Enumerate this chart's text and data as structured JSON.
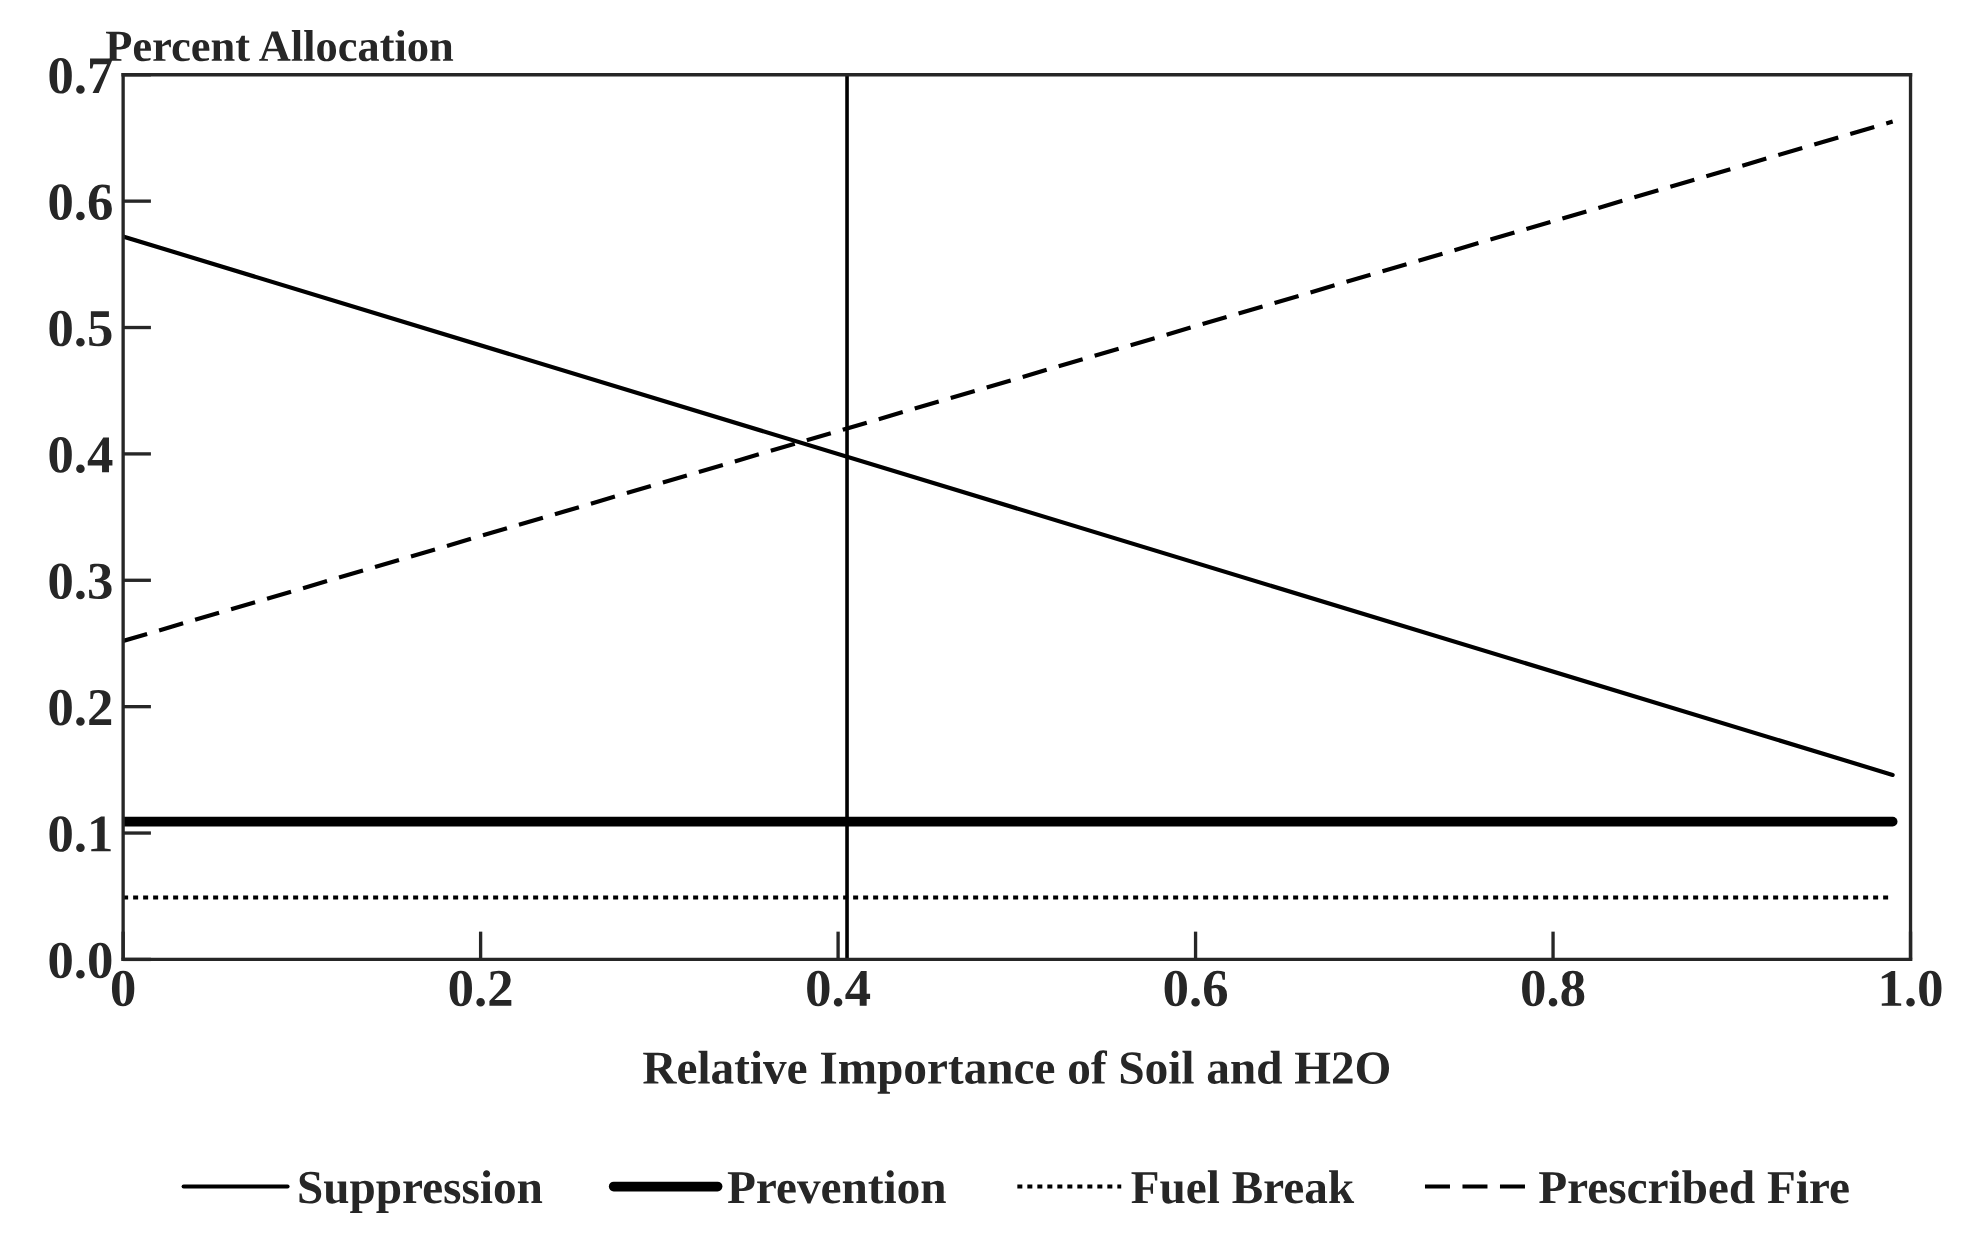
{
  "chart_data": {
    "type": "line",
    "xlabel": "Relative Importance of Soil and H2O",
    "ylabel": "Percent Allocation",
    "x": [
      0,
      0.99
    ],
    "series": [
      {
        "name": "Suppression",
        "color": "#000000",
        "values": [
          0.572,
          0.146
        ],
        "line_style": "solid"
      },
      {
        "name": "Prevention",
        "color": "#000000",
        "values": [
          0.109,
          0.109
        ],
        "line_style": "solid"
      },
      {
        "name": "Fuel Break",
        "color": "#000000",
        "values": [
          0.049,
          0.049
        ],
        "line_style": "dotted"
      },
      {
        "name": "Prescribed Fire",
        "color": "#000000",
        "values": [
          0.252,
          0.663
        ],
        "line_style": "dashed"
      }
    ],
    "ref_lines": [
      {
        "axis": "x",
        "value": 0.405,
        "color": "#000000"
      }
    ],
    "xlim": [
      0,
      1.0
    ],
    "xticks": [
      {
        "value": 0,
        "label": "0"
      },
      0.2,
      0.4,
      0.6,
      0.8,
      {
        "value": 1.0,
        "label": "1.0"
      }
    ],
    "ylim": [
      0,
      0.7
    ],
    "yticks": [
      {
        "value": 0,
        "label": "0.0"
      },
      0.1,
      0.2,
      0.3,
      0.4,
      0.5,
      0.6,
      0.7
    ],
    "grid": false,
    "legend": "bottom",
    "marker": "none"
  }
}
